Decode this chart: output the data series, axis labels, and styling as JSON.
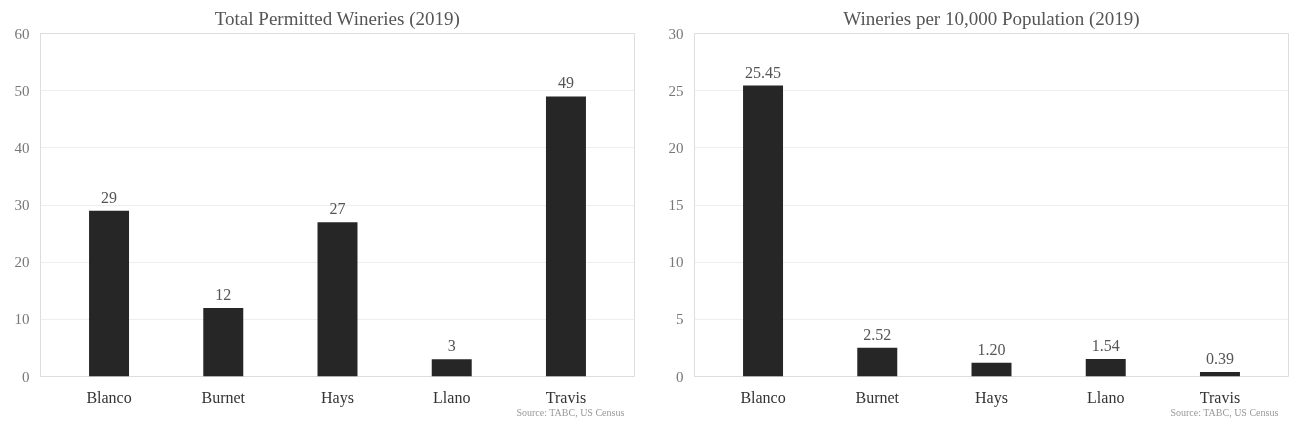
{
  "chart_data": [
    {
      "type": "bar",
      "title": "Total Permitted Wineries (2019)",
      "categories": [
        "Blanco",
        "Burnet",
        "Hays",
        "Llano",
        "Travis"
      ],
      "values": [
        29,
        12,
        27,
        3,
        49
      ],
      "color": "#262626",
      "ylim": [
        0,
        60
      ],
      "yticks": [
        0,
        10,
        20,
        30,
        40,
        50,
        60
      ],
      "grid": "y",
      "data_labels": true,
      "annotations": [
        "Source: TABC, US Census"
      ]
    },
    {
      "type": "bar",
      "title": "Wineries per 10,000 Population (2019)",
      "categories": [
        "Blanco",
        "Burnet",
        "Hays",
        "Llano",
        "Travis"
      ],
      "values": [
        25.45,
        2.52,
        1.2,
        1.54,
        0.39
      ],
      "value_labels": [
        "25.45",
        "2.52",
        "1.20",
        "1.54",
        "0.39"
      ],
      "color": "#262626",
      "ylim": [
        0,
        30
      ],
      "yticks": [
        0,
        5,
        10,
        15,
        20,
        25,
        30
      ],
      "grid": "y",
      "annotations": [
        "Source: TABC, US Census"
      ]
    }
  ]
}
